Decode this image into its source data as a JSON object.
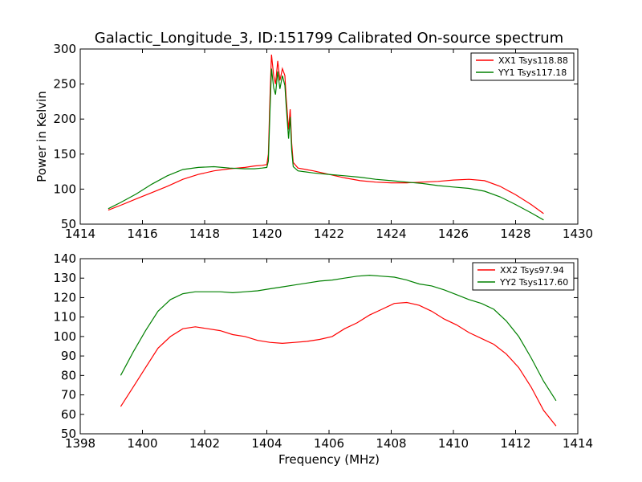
{
  "figure": {
    "title": "Galactic_Longitude_3, ID:151799 Calibrated On-source spectrum",
    "xlabel": "Frequency (MHz)"
  },
  "chart_data": [
    {
      "type": "line",
      "title": "Galactic_Longitude_3, ID:151799 Calibrated On-source spectrum",
      "xlabel": "",
      "ylabel": "Power in Kelvin",
      "xlim": [
        1414,
        1430
      ],
      "ylim": [
        50,
        300
      ],
      "xticks": [
        1414,
        1416,
        1418,
        1420,
        1422,
        1424,
        1426,
        1428,
        1430
      ],
      "yticks": [
        50,
        100,
        150,
        200,
        250,
        300
      ],
      "grid": false,
      "legend": "top-right",
      "series": [
        {
          "name": "XX1 Tsys118.88",
          "color": "#ff0000",
          "points": [
            [
              1414.9,
              70
            ],
            [
              1415.3,
              77
            ],
            [
              1415.8,
              86
            ],
            [
              1416.3,
              95
            ],
            [
              1416.8,
              104
            ],
            [
              1417.3,
              114
            ],
            [
              1417.8,
              121
            ],
            [
              1418.3,
              126
            ],
            [
              1418.8,
              129
            ],
            [
              1419.3,
              131
            ],
            [
              1419.6,
              133
            ],
            [
              1419.85,
              134
            ],
            [
              1420.0,
              135
            ],
            [
              1420.05,
              150
            ],
            [
              1420.1,
              230
            ],
            [
              1420.15,
              292
            ],
            [
              1420.22,
              262
            ],
            [
              1420.28,
              250
            ],
            [
              1420.35,
              283
            ],
            [
              1420.42,
              255
            ],
            [
              1420.5,
              272
            ],
            [
              1420.58,
              262
            ],
            [
              1420.62,
              232
            ],
            [
              1420.7,
              185
            ],
            [
              1420.75,
              214
            ],
            [
              1420.8,
              165
            ],
            [
              1420.85,
              138
            ],
            [
              1421.0,
              130
            ],
            [
              1421.5,
              126
            ],
            [
              1422.0,
              121
            ],
            [
              1422.5,
              116
            ],
            [
              1423.0,
              112
            ],
            [
              1423.5,
              110
            ],
            [
              1424.0,
              109
            ],
            [
              1424.5,
              109
            ],
            [
              1425.0,
              110
            ],
            [
              1425.5,
              111
            ],
            [
              1426.0,
              113
            ],
            [
              1426.5,
              114
            ],
            [
              1427.0,
              112
            ],
            [
              1427.5,
              104
            ],
            [
              1428.0,
              92
            ],
            [
              1428.5,
              78
            ],
            [
              1428.9,
              65
            ]
          ]
        },
        {
          "name": "YY1 Tsys117.18",
          "color": "#008000",
          "points": [
            [
              1414.9,
              72
            ],
            [
              1415.3,
              81
            ],
            [
              1415.8,
              93
            ],
            [
              1416.3,
              107
            ],
            [
              1416.8,
              119
            ],
            [
              1417.3,
              128
            ],
            [
              1417.8,
              131
            ],
            [
              1418.3,
              132
            ],
            [
              1418.8,
              130
            ],
            [
              1419.3,
              129
            ],
            [
              1419.6,
              129
            ],
            [
              1419.85,
              130
            ],
            [
              1420.0,
              131
            ],
            [
              1420.05,
              140
            ],
            [
              1420.1,
              210
            ],
            [
              1420.15,
              272
            ],
            [
              1420.22,
              245
            ],
            [
              1420.28,
              235
            ],
            [
              1420.35,
              268
            ],
            [
              1420.42,
              243
            ],
            [
              1420.5,
              262
            ],
            [
              1420.58,
              248
            ],
            [
              1420.62,
              221
            ],
            [
              1420.7,
              172
            ],
            [
              1420.75,
              203
            ],
            [
              1420.8,
              155
            ],
            [
              1420.85,
              132
            ],
            [
              1421.0,
              126
            ],
            [
              1421.5,
              123
            ],
            [
              1422.0,
              121
            ],
            [
              1422.5,
              119
            ],
            [
              1423.0,
              117
            ],
            [
              1423.5,
              114
            ],
            [
              1424.0,
              112
            ],
            [
              1424.5,
              110
            ],
            [
              1425.0,
              108
            ],
            [
              1425.5,
              105
            ],
            [
              1426.0,
              103
            ],
            [
              1426.5,
              101
            ],
            [
              1427.0,
              97
            ],
            [
              1427.5,
              89
            ],
            [
              1428.0,
              78
            ],
            [
              1428.5,
              66
            ],
            [
              1428.9,
              56
            ]
          ]
        }
      ]
    },
    {
      "type": "line",
      "title": "",
      "xlabel": "Frequency (MHz)",
      "ylabel": "",
      "xlim": [
        1398,
        1414
      ],
      "ylim": [
        50,
        140
      ],
      "xticks": [
        1398,
        1400,
        1402,
        1404,
        1406,
        1408,
        1410,
        1412,
        1414
      ],
      "yticks": [
        50,
        60,
        70,
        80,
        90,
        100,
        110,
        120,
        130,
        140
      ],
      "grid": false,
      "legend": "top-right",
      "series": [
        {
          "name": "XX2 Tsys97.94",
          "color": "#ff0000",
          "points": [
            [
              1399.3,
              64
            ],
            [
              1399.7,
              74
            ],
            [
              1400.1,
              84
            ],
            [
              1400.5,
              94
            ],
            [
              1400.9,
              100
            ],
            [
              1401.3,
              104
            ],
            [
              1401.7,
              105
            ],
            [
              1402.1,
              104
            ],
            [
              1402.5,
              103
            ],
            [
              1402.9,
              101
            ],
            [
              1403.3,
              100
            ],
            [
              1403.7,
              98
            ],
            [
              1404.1,
              97
            ],
            [
              1404.5,
              96.5
            ],
            [
              1404.9,
              97
            ],
            [
              1405.3,
              97.5
            ],
            [
              1405.7,
              98.5
            ],
            [
              1406.1,
              100
            ],
            [
              1406.5,
              104
            ],
            [
              1406.9,
              107
            ],
            [
              1407.3,
              111
            ],
            [
              1407.7,
              114
            ],
            [
              1408.1,
              117
            ],
            [
              1408.5,
              117.5
            ],
            [
              1408.9,
              116
            ],
            [
              1409.3,
              113
            ],
            [
              1409.7,
              109
            ],
            [
              1410.1,
              106
            ],
            [
              1410.5,
              102
            ],
            [
              1410.9,
              99
            ],
            [
              1411.3,
              96
            ],
            [
              1411.7,
              91
            ],
            [
              1412.1,
              84
            ],
            [
              1412.5,
              74
            ],
            [
              1412.9,
              62
            ],
            [
              1413.3,
              54
            ]
          ]
        },
        {
          "name": "YY2 Tsys117.60",
          "color": "#008000",
          "points": [
            [
              1399.3,
              80
            ],
            [
              1399.7,
              92
            ],
            [
              1400.1,
              103
            ],
            [
              1400.5,
              113
            ],
            [
              1400.9,
              119
            ],
            [
              1401.3,
              122
            ],
            [
              1401.7,
              123
            ],
            [
              1402.1,
              123
            ],
            [
              1402.5,
              123
            ],
            [
              1402.9,
              122.5
            ],
            [
              1403.3,
              123
            ],
            [
              1403.7,
              123.5
            ],
            [
              1404.1,
              124.5
            ],
            [
              1404.5,
              125.5
            ],
            [
              1404.9,
              126.5
            ],
            [
              1405.3,
              127.5
            ],
            [
              1405.7,
              128.5
            ],
            [
              1406.1,
              129
            ],
            [
              1406.5,
              130
            ],
            [
              1406.9,
              131
            ],
            [
              1407.3,
              131.5
            ],
            [
              1407.7,
              131
            ],
            [
              1408.1,
              130.5
            ],
            [
              1408.5,
              129
            ],
            [
              1408.9,
              127
            ],
            [
              1409.3,
              126
            ],
            [
              1409.7,
              124
            ],
            [
              1410.1,
              121.5
            ],
            [
              1410.5,
              119
            ],
            [
              1410.9,
              117
            ],
            [
              1411.3,
              114
            ],
            [
              1411.7,
              108
            ],
            [
              1412.1,
              100
            ],
            [
              1412.5,
              89
            ],
            [
              1412.9,
              77
            ],
            [
              1413.3,
              67
            ]
          ]
        }
      ]
    }
  ]
}
